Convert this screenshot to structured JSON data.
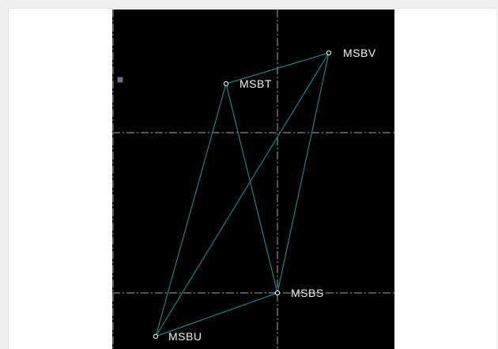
{
  "diagram": {
    "nodes": [
      {
        "id": "MSBV",
        "label": "MSBV"
      },
      {
        "id": "MSBT",
        "label": "MSBT"
      },
      {
        "id": "MSBS",
        "label": "MSBS"
      },
      {
        "id": "MSBU",
        "label": "MSBU"
      }
    ],
    "edges": [
      {
        "from": "MSBV",
        "to": "MSBT"
      },
      {
        "from": "MSBV",
        "to": "MSBU"
      },
      {
        "from": "MSBV",
        "to": "MSBS"
      },
      {
        "from": "MSBT",
        "to": "MSBU"
      },
      {
        "from": "MSBT",
        "to": "MSBS"
      },
      {
        "from": "MSBS",
        "to": "MSBU"
      }
    ],
    "colors": {
      "background": "#000000",
      "edge": "#1e9a9e",
      "guide": "#c8c8c8",
      "node_marker": "#ffffff",
      "label": "#f2f2f2"
    }
  }
}
